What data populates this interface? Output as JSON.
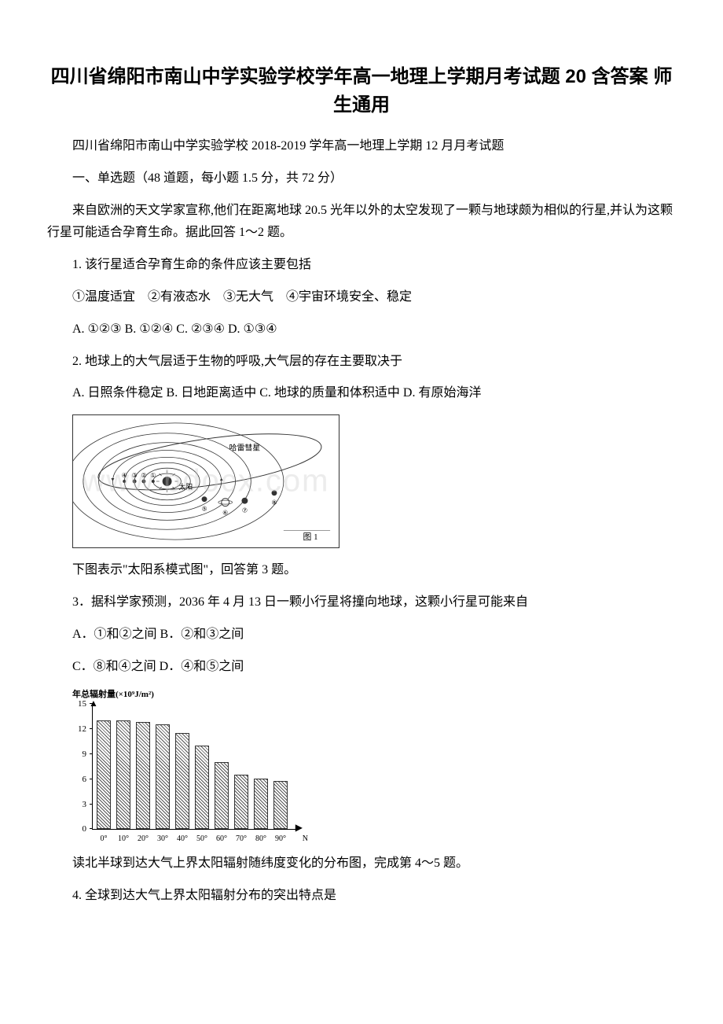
{
  "title": "四川省绵阳市南山中学实验学校学年高一地理上学期月考试题 20 含答案 师生通用",
  "p1": "四川省绵阳市南山中学实验学校 2018-2019 学年高一地理上学期 12 月月考试题",
  "p2": "一、单选题（48 道题，每小题 1.5 分，共 72 分）",
  "p3": "来自欧洲的天文学家宣称,他们在距离地球 20.5 光年以外的太空发现了一颗与地球颇为相似的行星,并认为这颗行星可能适合孕育生命。据此回答 1～2 题。",
  "p4": "1. 该行星适合孕育生命的条件应该主要包括",
  "p5": "①温度适宜　②有液态水　③无大气　④宇宙环境安全、稳定",
  "p6": "A. ①②③ B. ①②④ C. ②③④ D. ①③④",
  "p7": "2. 地球上的大气层适于生物的呼吸,大气层的存在主要取决于",
  "p8": "A. 日照条件稳定 B. 日地距离适中 C. 地球的质量和体积适中 D. 有原始海洋",
  "p9": "下图表示\"太阳系模式图\"，回答第 3 题。",
  "p10": "3．据科学家预测，2036 年 4 月 13 日一颗小行星将撞向地球，这颗小行星可能来自",
  "p11": "A．①和②之间 B．②和③之间",
  "p12": "C．⑧和④之间 D．④和⑤之间",
  "p13": "读北半球到达大气上界太阳辐射随纬度变化的分布图，完成第 4～5 题。",
  "p14": "4. 全球到达大气上界太阳辐射分布的突出特点是",
  "solar_diagram": {
    "sun_label": "太阳",
    "comet_label": "哈雷彗星",
    "fig_label": "图 1"
  },
  "watermark": "www.bdocx.com",
  "chart": {
    "title": "年总辐射量(×10⁹J/m²)",
    "y_ticks": [
      0,
      3,
      6,
      9,
      12,
      15
    ],
    "x_labels": [
      "0°",
      "10°",
      "20°",
      "30°",
      "40°",
      "50°",
      "60°",
      "70°",
      "80°",
      "90°"
    ],
    "x_end": "N",
    "values": [
      13,
      13,
      12.8,
      12.5,
      11.5,
      10,
      8,
      6.5,
      6,
      5.8
    ],
    "y_max": 15,
    "bar_color": "#666666",
    "background": "#ffffff"
  }
}
